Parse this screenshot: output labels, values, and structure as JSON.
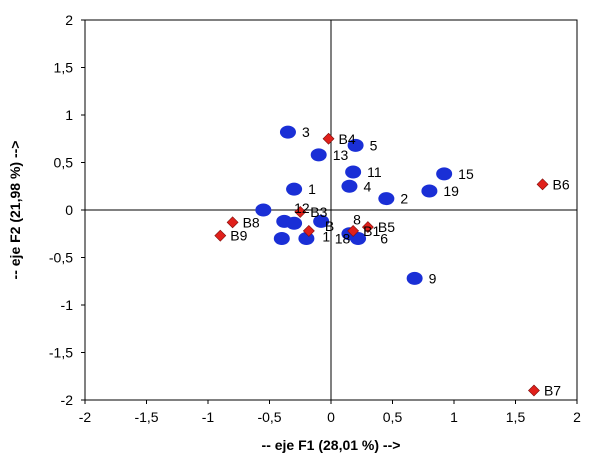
{
  "chart_data": {
    "type": "scatter",
    "title": "",
    "xlabel": "-- eje F1 (28,01 %) -->",
    "ylabel": "-- eje F2 (21,98 %) -->",
    "xlim": [
      -2,
      2
    ],
    "ylim": [
      -2,
      2
    ],
    "x_ticks": [
      -2,
      -1.5,
      -1,
      -0.5,
      0,
      0.5,
      1,
      1.5,
      2
    ],
    "y_ticks": [
      -2,
      -1.5,
      -1,
      -0.5,
      0,
      0.5,
      1,
      1.5,
      2
    ],
    "x_tick_labels": [
      "-2",
      "-1,5",
      "-1",
      "-0,5",
      "0",
      "0,5",
      "1",
      "1,5",
      "2"
    ],
    "y_tick_labels": [
      "-2",
      "-1,5",
      "-1",
      "-0,5",
      "0",
      "0,5",
      "1",
      "1,5",
      "2"
    ],
    "grid": false,
    "colors": {
      "observations": "#1a2fd6",
      "variables": "#e0201b"
    },
    "series": [
      {
        "marker": "circle",
        "points": [
          {
            "label": "3",
            "x": -0.35,
            "y": 0.82
          },
          {
            "label": "5",
            "x": 0.2,
            "y": 0.68
          },
          {
            "label": "13",
            "x": -0.1,
            "y": 0.58
          },
          {
            "label": "11",
            "x": 0.18,
            "y": 0.4
          },
          {
            "label": "1",
            "x": -0.3,
            "y": 0.22
          },
          {
            "label": "4",
            "x": 0.15,
            "y": 0.25
          },
          {
            "label": "2",
            "x": 0.45,
            "y": 0.12
          },
          {
            "label": "15",
            "x": 0.92,
            "y": 0.38
          },
          {
            "label": "19",
            "x": 0.8,
            "y": 0.2
          },
          {
            "label": "",
            "x": -0.55,
            "y": 0.0
          },
          {
            "label": "",
            "x": -0.38,
            "y": -0.12
          },
          {
            "label": "",
            "x": -0.3,
            "y": -0.14
          },
          {
            "label": "",
            "x": -0.08,
            "y": -0.12
          },
          {
            "label": "",
            "x": -0.4,
            "y": -0.3
          },
          {
            "label": "",
            "x": -0.2,
            "y": -0.3
          },
          {
            "label": "",
            "x": 0.15,
            "y": -0.25
          },
          {
            "label": "",
            "x": 0.22,
            "y": -0.3
          },
          {
            "label": "9",
            "x": 0.68,
            "y": -0.72
          }
        ]
      },
      {
        "marker": "diamond",
        "points": [
          {
            "label": "B4",
            "x": -0.02,
            "y": 0.75
          },
          {
            "label": "B6",
            "x": 1.72,
            "y": 0.27
          },
          {
            "label": "B8",
            "x": -0.8,
            "y": -0.13
          },
          {
            "label": "B9",
            "x": -0.9,
            "y": -0.27
          },
          {
            "label": "B3",
            "x": -0.25,
            "y": -0.02
          },
          {
            "label": "B1",
            "x": 0.18,
            "y": -0.22
          },
          {
            "label": "B5",
            "x": 0.3,
            "y": -0.18
          },
          {
            "label": "",
            "x": -0.18,
            "y": -0.22
          },
          {
            "label": "B7",
            "x": 1.65,
            "y": -1.9
          }
        ]
      }
    ],
    "annotations": [
      {
        "text": "12",
        "x": -0.3,
        "y": 0.02
      },
      {
        "text": "8",
        "x": 0.18,
        "y": -0.1
      },
      {
        "text": "18",
        "x": 0.03,
        "y": -0.3
      },
      {
        "text": "6",
        "x": 0.4,
        "y": -0.3
      },
      {
        "text": "B",
        "x": -0.05,
        "y": -0.17
      },
      {
        "text": "1",
        "x": -0.07,
        "y": -0.28
      }
    ]
  }
}
